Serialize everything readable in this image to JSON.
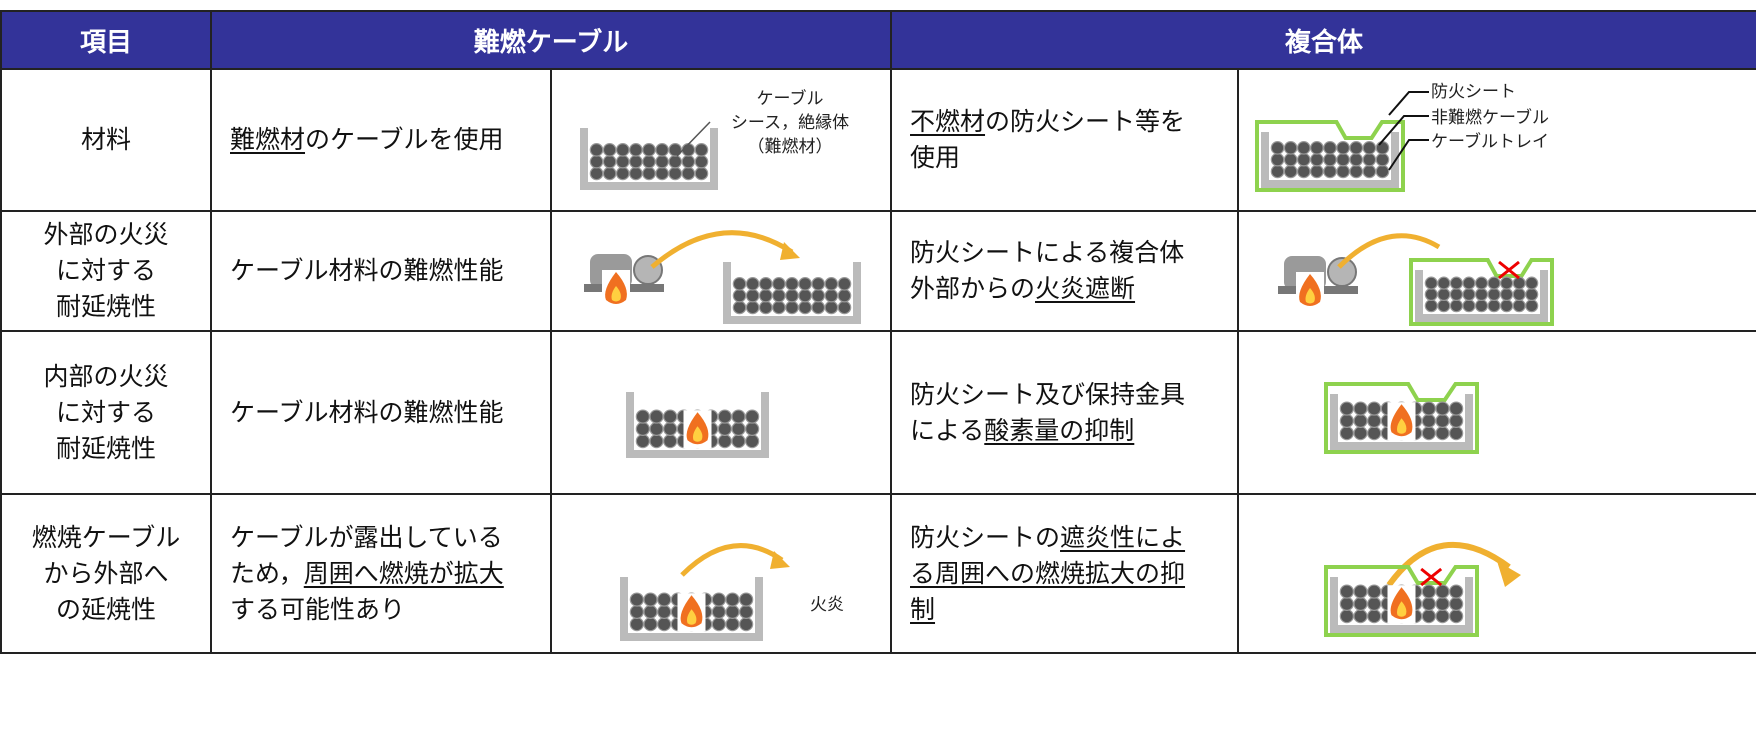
{
  "header": {
    "item": "項目",
    "flame_retardant_cable": "難燃ケーブル",
    "composite": "複合体"
  },
  "rows": [
    {
      "item": [
        "材料"
      ],
      "flame_retardant_cable": [
        "難燃材",
        "のケーブルを使用"
      ],
      "flame_retardant_figure_labels": [
        "ケーブル",
        "シース，絶縁体",
        "（難燃材）"
      ],
      "composite": [
        "不燃材",
        "の防火シート等を使用"
      ],
      "composite_figure_labels": [
        "防火シート",
        "非難燃ケーブル",
        "ケーブルトレイ"
      ]
    },
    {
      "item": [
        "外部の火災",
        "に対する",
        "耐延焼性"
      ],
      "flame_retardant_cable": [
        "ケーブル材料の難燃性能"
      ],
      "composite": [
        "防火シートによる複合体外部からの",
        "火炎遮断"
      ]
    },
    {
      "item": [
        "内部の火災",
        "に対する",
        "耐延焼性"
      ],
      "flame_retardant_cable": [
        "ケーブル材料の難燃性能"
      ],
      "composite": [
        "防火シート及び保持金具による",
        "酸素量の抑制"
      ]
    },
    {
      "item": [
        "燃焼ケーブル",
        "から外部へ",
        "の延焼性"
      ],
      "flame_retardant_cable": [
        "ケーブルが露出しているため，",
        "周囲へ燃焼が拡大",
        "する可能性あり"
      ],
      "flame_retardant_figure_labels": [
        "火炎"
      ],
      "composite": [
        "防火シートの",
        "遮炎性による周囲への燃焼拡大の抑制"
      ]
    }
  ]
}
